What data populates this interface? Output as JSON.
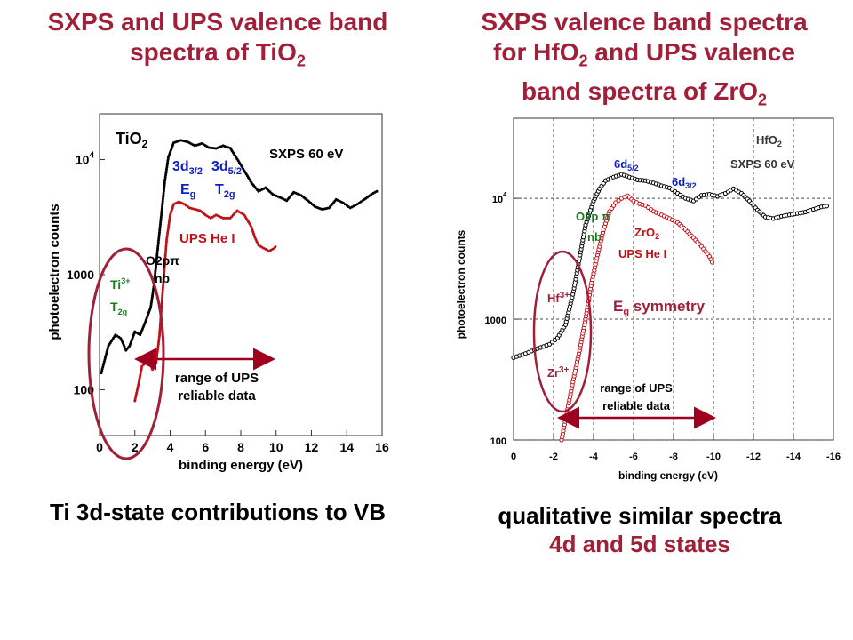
{
  "left": {
    "title_line1": "SXPS and UPS valence band",
    "title_line2_main": "spectra of TiO",
    "title_line2_sub": "2",
    "caption": "Ti 3d-state contributions to VB"
  },
  "right": {
    "title_line1": "SXPS valence band spectra",
    "title_line2_pre": "for HfO",
    "title_line2_sub": "2",
    "title_line2_post": " and UPS valence",
    "title_line3_main": "band spectra of ZrO",
    "title_line3_sub": "2",
    "caption_line1": "qualitative similar spectra",
    "caption_line2": "4d and 5d states"
  },
  "colors": {
    "title": "#a0203a",
    "black": "#000000",
    "red": "#c0101a",
    "blue": "#1020c0",
    "green": "#1a7a20",
    "circle": "#a0203a",
    "arrow": "#a00020"
  },
  "chart_data": [
    {
      "type": "line",
      "xlabel": "binding energy (eV)",
      "ylabel": "photoelectron counts",
      "xlim": [
        0,
        16
      ],
      "ylim": [
        40,
        25000
      ],
      "log_y": true,
      "xticks": [
        "0",
        "2",
        "4",
        "6",
        "8",
        "10",
        "12",
        "14",
        "16"
      ],
      "yticks": [
        {
          "base": "10",
          "exp": "4",
          "value": 10000
        },
        {
          "base": "1000",
          "exp": "",
          "value": 1000
        },
        {
          "base": "100",
          "exp": "",
          "value": 100
        }
      ],
      "series": [
        {
          "name": "SXPS 60 eV",
          "color": "#000000",
          "x": [
            0.1,
            0.5,
            0.9,
            1.2,
            1.5,
            1.7,
            2.0,
            2.3,
            2.6,
            2.9,
            3.1,
            3.3,
            3.5,
            3.7,
            3.9,
            4.2,
            4.6,
            5.0,
            5.4,
            5.8,
            6.2,
            6.6,
            7.0,
            7.4,
            7.8,
            8.2,
            8.6,
            9.0,
            9.4,
            9.8,
            10.2,
            10.6,
            11.0,
            11.4,
            11.8,
            12.2,
            12.6,
            13.0,
            13.4,
            13.8,
            14.2,
            14.6,
            15.0,
            15.4,
            15.8
          ],
          "y": [
            140,
            240,
            300,
            280,
            220,
            240,
            320,
            300,
            390,
            520,
            850,
            1700,
            3300,
            6500,
            10500,
            14000,
            14700,
            14200,
            13200,
            13800,
            12700,
            12500,
            13200,
            12600,
            10100,
            8000,
            6300,
            5300,
            5700,
            5000,
            4700,
            4400,
            5200,
            4900,
            4400,
            3900,
            3700,
            3800,
            4500,
            4200,
            3800,
            4100,
            4500,
            5000,
            5400
          ]
        },
        {
          "name": "UPS He I",
          "color": "#c0101a",
          "x": [
            2.0,
            2.2,
            2.4,
            2.6,
            2.8,
            3.0,
            3.2,
            3.4,
            3.6,
            3.8,
            4.0,
            4.2,
            4.5,
            4.8,
            5.1,
            5.4,
            5.7,
            6.0,
            6.3,
            6.6,
            7.0,
            7.4,
            7.8,
            8.2,
            8.6,
            8.8,
            9.0,
            9.3,
            9.6,
            9.9,
            10.0
          ],
          "y": [
            80,
            110,
            160,
            170,
            180,
            150,
            170,
            300,
            800,
            2000,
            3300,
            4100,
            4300,
            4100,
            3800,
            3700,
            3600,
            3300,
            3100,
            3300,
            3100,
            3100,
            3600,
            3300,
            2600,
            2100,
            1800,
            1700,
            1600,
            1700,
            1800
          ]
        }
      ]
    },
    {
      "type": "line",
      "xlabel": "binding energy (eV)",
      "ylabel": "photoelectron counts",
      "xlim": [
        0,
        -16
      ],
      "ylim": [
        100,
        46000
      ],
      "log_y": true,
      "xticks": [
        "0",
        "-2",
        "-4",
        "-6",
        "-8",
        "-10",
        "-12",
        "-14",
        "-16"
      ],
      "yticks": [
        {
          "base": "10",
          "exp": "4",
          "value": 10000
        },
        {
          "base": "1000",
          "exp": "",
          "value": 1000
        },
        {
          "base": "100",
          "exp": "",
          "value": 100
        }
      ],
      "series": [
        {
          "name": "HfO2 SXPS 60 eV",
          "color": "#000000",
          "x": [
            0,
            -0.6,
            -1.2,
            -1.8,
            -2.2,
            -2.6,
            -3.0,
            -3.3,
            -3.6,
            -4.0,
            -4.3,
            -4.6,
            -5.0,
            -5.4,
            -5.8,
            -6.2,
            -6.6,
            -7.0,
            -7.4,
            -7.8,
            -8.2,
            -8.6,
            -9.0,
            -9.4,
            -9.8,
            -10.2,
            -10.6,
            -11.0,
            -11.4,
            -11.8,
            -12.2,
            -12.6,
            -13.0,
            -13.4,
            -13.8,
            -14.2,
            -14.6,
            -15.0,
            -15.4,
            -15.8
          ],
          "y": [
            480,
            520,
            570,
            620,
            700,
            900,
            1700,
            3200,
            6000,
            9500,
            12000,
            14000,
            15000,
            15800,
            15000,
            14200,
            14000,
            13400,
            12700,
            12200,
            11000,
            10000,
            9500,
            10600,
            10800,
            10400,
            11000,
            12000,
            11000,
            9500,
            8000,
            7000,
            6800,
            7100,
            7300,
            7500,
            7700,
            8100,
            8500,
            8700
          ]
        },
        {
          "name": "ZrO2 UPS He I",
          "color": "#c0101a",
          "x": [
            -2.4,
            -2.7,
            -3.0,
            -3.3,
            -3.6,
            -3.9,
            -4.2,
            -4.5,
            -4.8,
            -5.1,
            -5.4,
            -5.7,
            -6.0,
            -6.3,
            -6.6,
            -7.0,
            -7.4,
            -7.8,
            -8.2,
            -8.6,
            -9.0,
            -9.4,
            -9.8,
            -10.0
          ],
          "y": [
            100,
            180,
            320,
            550,
            1000,
            2000,
            3400,
            5500,
            7800,
            9200,
            10000,
            10500,
            9500,
            9000,
            8700,
            7800,
            7300,
            6800,
            6300,
            5500,
            4700,
            4000,
            3300,
            2800
          ]
        }
      ]
    }
  ],
  "left_labels": {
    "tio2_main": "TiO",
    "tio2_sub": "2",
    "d32_main": "3d",
    "d32_sub": "3/2",
    "d52_main": "3d",
    "d52_sub": "5/2",
    "eg_main": "E",
    "eg_sub": "g",
    "t2g_main": "T",
    "t2g_sub": "2g",
    "sxps": "SXPS 60 eV",
    "ups": "UPS He I",
    "o2p": "O2pπ",
    "nb": "nb",
    "ti3_main": "Ti",
    "ti3_sup": "3+",
    "t2g2_main": "T",
    "t2g2_sub": "2g",
    "range_line1": "range of UPS",
    "range_line2": "reliable data"
  },
  "right_labels": {
    "hfo2_main": "HfO",
    "hfo2_sub": "2",
    "sxps": "SXPS  60  eV",
    "d52_main": "6d",
    "d52_sub": "5/2",
    "d32_main": "6d",
    "d32_sub": "3/2",
    "o2p": "O2p π",
    "nb": "nb",
    "zro2_main": "ZrO",
    "zro2_sub": "2",
    "ups": "UPS  He  I",
    "hf3_main": "Hf",
    "hf3_sup": "3+",
    "zr3_main": "Zr",
    "zr3_sup": "3+",
    "eg_main": "E",
    "eg_sub": "g",
    "eg_post": " symmetry",
    "range_line1": "range of UPS",
    "range_line2": "reliable data"
  }
}
